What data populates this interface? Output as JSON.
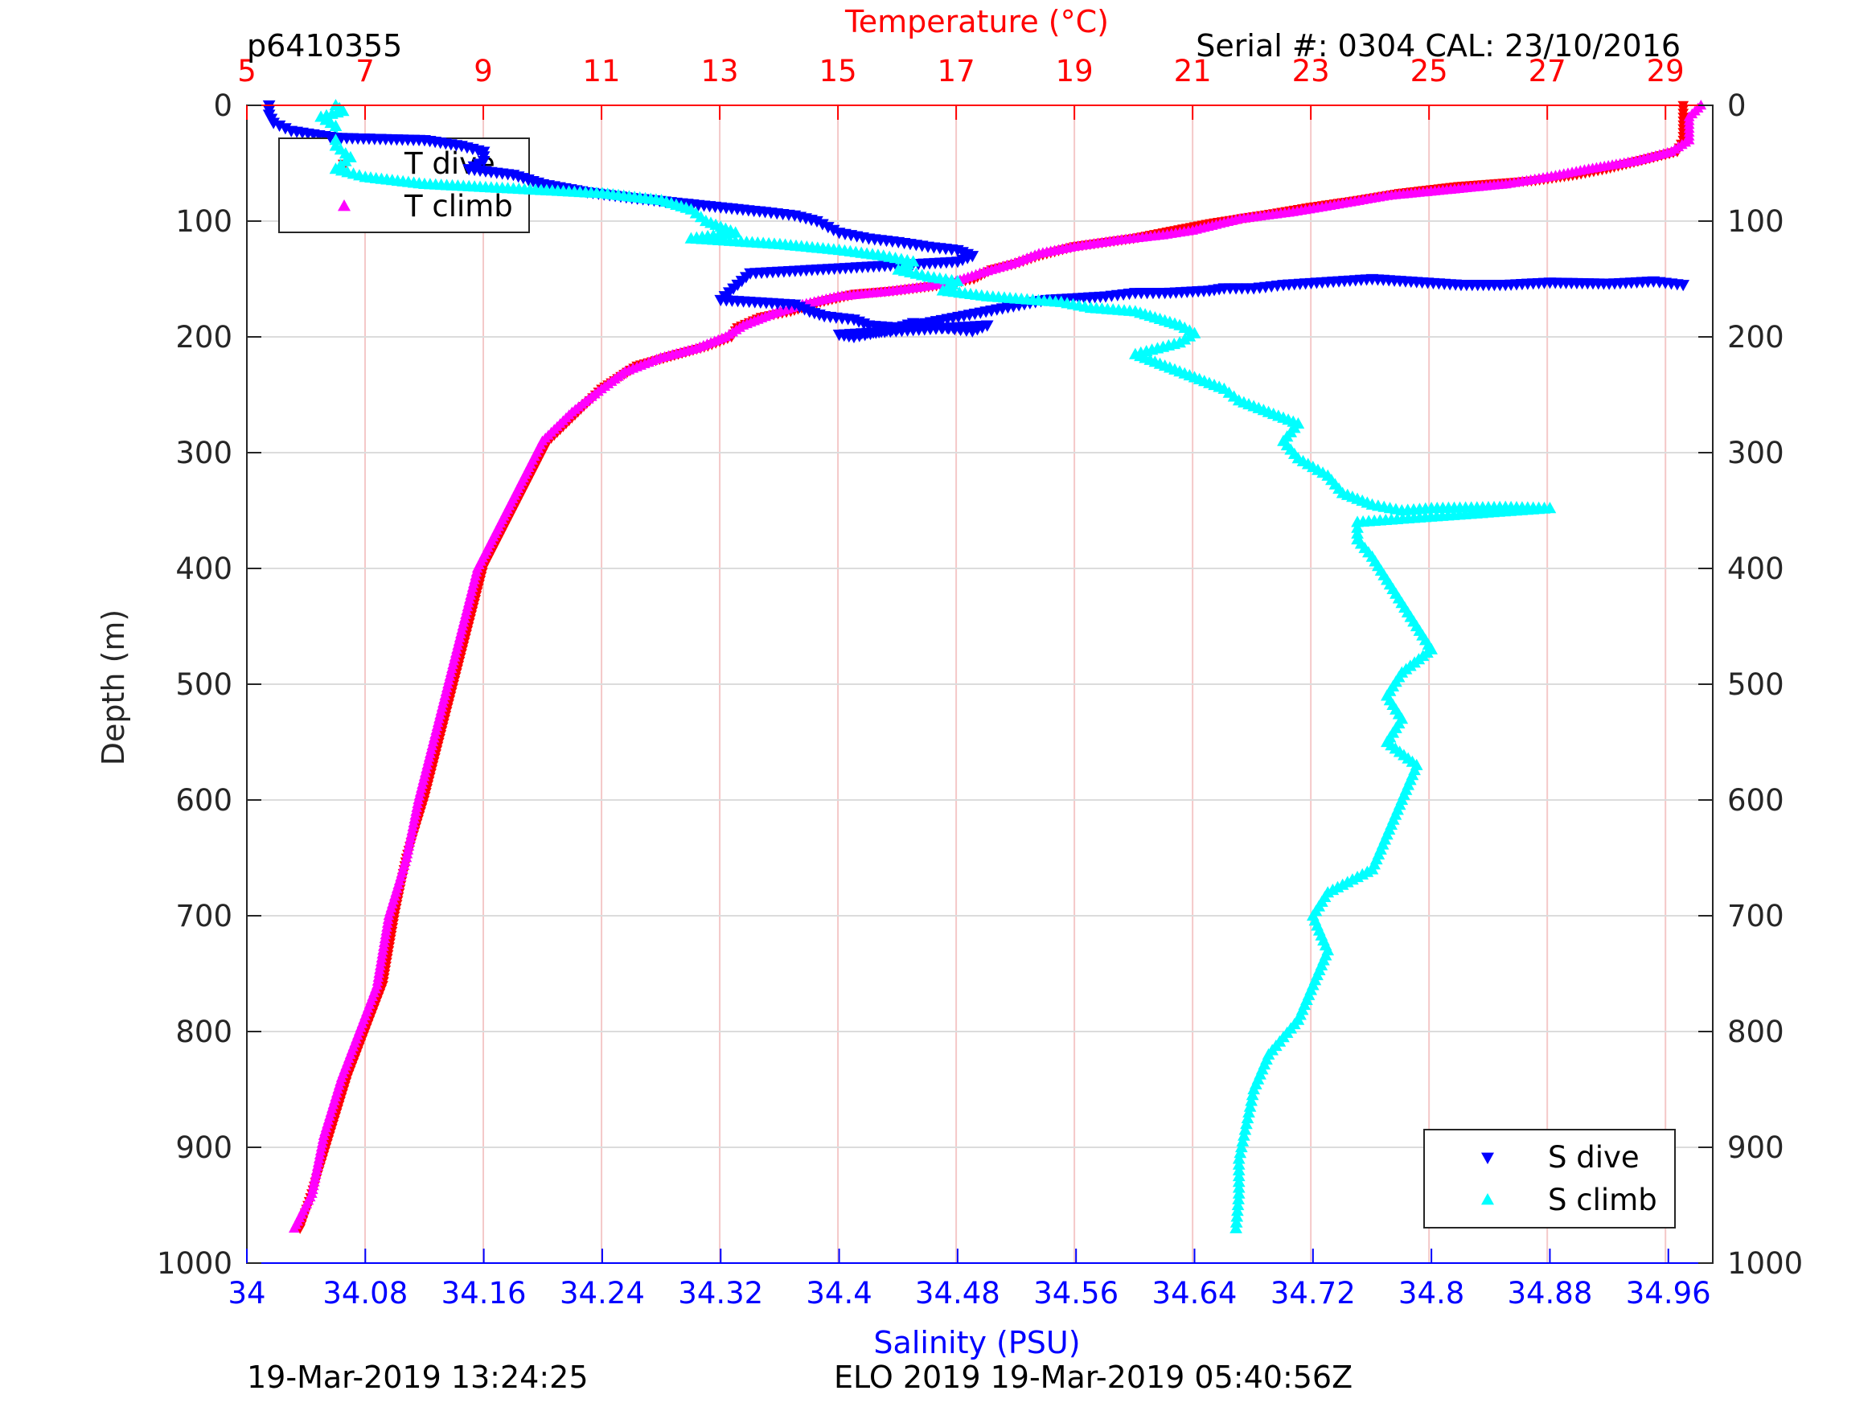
{
  "header": {
    "left": "p6410355",
    "right": "Serial #: 0304  CAL: 23/10/2016"
  },
  "footer": {
    "left": "19-Mar-2019 13:24:25",
    "center": "ELO 2019 19-Mar-2019 05:40:56Z"
  },
  "colors": {
    "t_dive": "#ff0000",
    "t_climb": "#ff00ff",
    "s_dive": "#0000ff",
    "s_climb": "#00ffff",
    "temperature_axis": "#ff0000",
    "salinity_axis": "#0000ff",
    "grid_vertical": "#f4c8c8",
    "grid_horizontal": "#dcdcdc"
  },
  "chart_data": {
    "type": "scatter",
    "title": "",
    "ylabel": "Depth (m)",
    "ylim": [
      0,
      1000
    ],
    "y_reversed": true,
    "yticks": [
      "0",
      "100",
      "200",
      "300",
      "400",
      "500",
      "600",
      "700",
      "800",
      "900",
      "1000"
    ],
    "x_bottom": {
      "label": "Salinity (PSU)",
      "lim": [
        34.0,
        34.99
      ],
      "ticks": [
        "34",
        "34.08",
        "34.16",
        "34.24",
        "34.32",
        "34.4",
        "34.48",
        "34.56",
        "34.64",
        "34.72",
        "34.8",
        "34.88",
        "34.96"
      ]
    },
    "x_top": {
      "label": "Temperature (°C)",
      "lim": [
        5,
        29.8
      ],
      "ticks": [
        "5",
        "7",
        "9",
        "11",
        "13",
        "15",
        "17",
        "19",
        "21",
        "23",
        "25",
        "27",
        "29"
      ]
    },
    "grid": true,
    "legends": [
      {
        "placement": "top-left",
        "entries": [
          "T dive",
          "T climb"
        ]
      },
      {
        "placement": "bottom-right",
        "entries": [
          "S dive",
          "S climb"
        ]
      }
    ],
    "series": [
      {
        "name": "T dive",
        "axis": "temperature",
        "marker": "triangle-down",
        "points": [
          [
            29.3,
            0
          ],
          [
            29.3,
            10
          ],
          [
            29.3,
            20
          ],
          [
            29.3,
            30
          ],
          [
            29.2,
            40
          ],
          [
            28.8,
            45
          ],
          [
            28.0,
            55
          ],
          [
            27.5,
            60
          ],
          [
            26.8,
            65
          ],
          [
            25.5,
            70
          ],
          [
            24.5,
            76
          ],
          [
            23.8,
            82
          ],
          [
            23.0,
            88
          ],
          [
            22.3,
            94
          ],
          [
            21.3,
            102
          ],
          [
            20.5,
            110
          ],
          [
            20.0,
            115
          ],
          [
            19.0,
            122
          ],
          [
            18.4,
            130
          ],
          [
            18.0,
            137
          ],
          [
            17.6,
            142
          ],
          [
            17.3,
            150
          ],
          [
            16.8,
            155
          ],
          [
            16.0,
            160
          ],
          [
            15.3,
            163
          ],
          [
            14.7,
            170
          ],
          [
            14.2,
            178
          ],
          [
            13.7,
            183
          ],
          [
            13.3,
            192
          ],
          [
            13.2,
            200
          ],
          [
            12.8,
            208
          ],
          [
            12.3,
            215
          ],
          [
            11.6,
            225
          ],
          [
            11.0,
            245
          ],
          [
            10.5,
            270
          ],
          [
            10.1,
            290
          ],
          [
            9.9,
            310
          ],
          [
            9.6,
            340
          ],
          [
            9.3,
            370
          ],
          [
            9.0,
            400
          ],
          [
            8.8,
            440
          ],
          [
            8.6,
            480
          ],
          [
            8.4,
            520
          ],
          [
            8.2,
            560
          ],
          [
            8.0,
            600
          ],
          [
            7.7,
            650
          ],
          [
            7.5,
            700
          ],
          [
            7.3,
            760
          ],
          [
            7.0,
            800
          ],
          [
            6.7,
            840
          ],
          [
            6.4,
            890
          ],
          [
            6.1,
            940
          ],
          [
            5.9,
            970
          ]
        ]
      },
      {
        "name": "T climb",
        "axis": "temperature",
        "marker": "triangle-up",
        "points": [
          [
            29.6,
            0
          ],
          [
            29.4,
            10
          ],
          [
            29.4,
            20
          ],
          [
            29.4,
            30
          ],
          [
            29.1,
            40
          ],
          [
            28.5,
            48
          ],
          [
            27.7,
            55
          ],
          [
            27.0,
            62
          ],
          [
            26.3,
            68
          ],
          [
            25.3,
            73
          ],
          [
            24.3,
            78
          ],
          [
            23.4,
            86
          ],
          [
            22.7,
            92
          ],
          [
            21.8,
            98
          ],
          [
            21.0,
            108
          ],
          [
            20.5,
            112
          ],
          [
            19.8,
            116
          ],
          [
            19.0,
            122
          ],
          [
            18.4,
            128
          ],
          [
            18.0,
            136
          ],
          [
            17.4,
            145
          ],
          [
            17.0,
            152
          ],
          [
            16.4,
            157
          ],
          [
            15.8,
            161
          ],
          [
            15.0,
            165
          ],
          [
            14.4,
            172
          ],
          [
            13.9,
            180
          ],
          [
            13.4,
            190
          ],
          [
            13.1,
            200
          ],
          [
            12.6,
            210
          ],
          [
            12.0,
            218
          ],
          [
            11.4,
            230
          ],
          [
            11.0,
            245
          ],
          [
            10.5,
            265
          ],
          [
            10.0,
            290
          ],
          [
            9.8,
            310
          ],
          [
            9.5,
            340
          ],
          [
            9.2,
            370
          ],
          [
            8.9,
            400
          ],
          [
            8.7,
            440
          ],
          [
            8.5,
            480
          ],
          [
            8.3,
            520
          ],
          [
            8.1,
            560
          ],
          [
            7.9,
            600
          ],
          [
            7.7,
            650
          ],
          [
            7.4,
            700
          ],
          [
            7.2,
            760
          ],
          [
            6.9,
            800
          ],
          [
            6.6,
            840
          ],
          [
            6.3,
            890
          ],
          [
            6.1,
            940
          ],
          [
            5.8,
            970
          ]
        ]
      },
      {
        "name": "S dive",
        "axis": "salinity",
        "marker": "triangle-down",
        "points": [
          [
            34.015,
            0
          ],
          [
            34.015,
            8
          ],
          [
            34.018,
            15
          ],
          [
            34.03,
            22
          ],
          [
            34.06,
            28
          ],
          [
            34.12,
            30
          ],
          [
            34.145,
            35
          ],
          [
            34.16,
            40
          ],
          [
            34.16,
            48
          ],
          [
            34.15,
            55
          ],
          [
            34.18,
            60
          ],
          [
            34.2,
            68
          ],
          [
            34.23,
            75
          ],
          [
            34.26,
            80
          ],
          [
            34.29,
            84
          ],
          [
            34.32,
            88
          ],
          [
            34.35,
            92
          ],
          [
            34.37,
            95
          ],
          [
            34.385,
            100
          ],
          [
            34.4,
            110
          ],
          [
            34.42,
            115
          ],
          [
            34.44,
            118
          ],
          [
            34.46,
            122
          ],
          [
            34.48,
            125
          ],
          [
            34.49,
            130
          ],
          [
            34.48,
            135
          ],
          [
            34.34,
            145
          ],
          [
            34.32,
            168
          ],
          [
            34.37,
            172
          ],
          [
            34.38,
            178
          ],
          [
            34.39,
            182
          ],
          [
            34.41,
            185
          ],
          [
            34.42,
            190
          ],
          [
            34.44,
            192
          ],
          [
            34.45,
            188
          ],
          [
            34.47,
            192
          ],
          [
            34.49,
            195
          ],
          [
            34.5,
            190
          ],
          [
            34.4,
            198
          ],
          [
            34.41,
            200
          ],
          [
            34.54,
            168
          ],
          [
            34.58,
            165
          ],
          [
            34.6,
            162
          ],
          [
            34.62,
            162
          ],
          [
            34.65,
            160
          ],
          [
            34.66,
            158
          ],
          [
            34.68,
            158
          ],
          [
            34.7,
            155
          ],
          [
            34.76,
            150
          ],
          [
            34.82,
            155
          ],
          [
            34.85,
            155
          ],
          [
            34.88,
            153
          ],
          [
            34.92,
            154
          ],
          [
            34.95,
            152
          ],
          [
            34.97,
            155
          ]
        ]
      },
      {
        "name": "S climb",
        "axis": "salinity",
        "marker": "triangle-up",
        "points": [
          [
            34.06,
            0
          ],
          [
            34.065,
            5
          ],
          [
            34.05,
            10
          ],
          [
            34.06,
            18
          ],
          [
            34.06,
            25
          ],
          [
            34.06,
            35
          ],
          [
            34.07,
            45
          ],
          [
            34.06,
            55
          ],
          [
            34.08,
            62
          ],
          [
            34.12,
            68
          ],
          [
            34.18,
            72
          ],
          [
            34.24,
            76
          ],
          [
            34.28,
            82
          ],
          [
            34.3,
            90
          ],
          [
            34.31,
            100
          ],
          [
            34.33,
            110
          ],
          [
            34.3,
            115
          ],
          [
            34.36,
            120
          ],
          [
            34.4,
            125
          ],
          [
            34.43,
            130
          ],
          [
            34.45,
            135
          ],
          [
            34.44,
            142
          ],
          [
            34.46,
            148
          ],
          [
            34.48,
            152
          ],
          [
            34.47,
            160
          ],
          [
            34.5,
            165
          ],
          [
            34.55,
            170
          ],
          [
            34.57,
            175
          ],
          [
            34.6,
            178
          ],
          [
            34.61,
            182
          ],
          [
            34.63,
            190
          ],
          [
            34.64,
            197
          ],
          [
            34.63,
            205
          ],
          [
            34.6,
            215
          ],
          [
            34.62,
            225
          ],
          [
            34.64,
            235
          ],
          [
            34.66,
            245
          ],
          [
            34.67,
            255
          ],
          [
            34.69,
            265
          ],
          [
            34.71,
            275
          ],
          [
            34.7,
            290
          ],
          [
            34.71,
            305
          ],
          [
            34.73,
            320
          ],
          [
            34.74,
            335
          ],
          [
            34.76,
            345
          ],
          [
            34.78,
            350
          ],
          [
            34.8,
            348
          ],
          [
            34.85,
            347
          ],
          [
            34.88,
            348
          ],
          [
            34.75,
            360
          ],
          [
            34.75,
            375
          ],
          [
            34.76,
            390
          ],
          [
            34.77,
            410
          ],
          [
            34.78,
            430
          ],
          [
            34.79,
            450
          ],
          [
            34.8,
            470
          ],
          [
            34.78,
            490
          ],
          [
            34.77,
            510
          ],
          [
            34.78,
            530
          ],
          [
            34.77,
            550
          ],
          [
            34.79,
            570
          ],
          [
            34.78,
            600
          ],
          [
            34.77,
            630
          ],
          [
            34.76,
            660
          ],
          [
            34.73,
            680
          ],
          [
            34.72,
            700
          ],
          [
            34.73,
            730
          ],
          [
            34.72,
            760
          ],
          [
            34.71,
            790
          ],
          [
            34.69,
            820
          ],
          [
            34.68,
            850
          ],
          [
            34.675,
            880
          ],
          [
            34.67,
            910
          ],
          [
            34.67,
            940
          ],
          [
            34.668,
            970
          ]
        ]
      }
    ]
  }
}
